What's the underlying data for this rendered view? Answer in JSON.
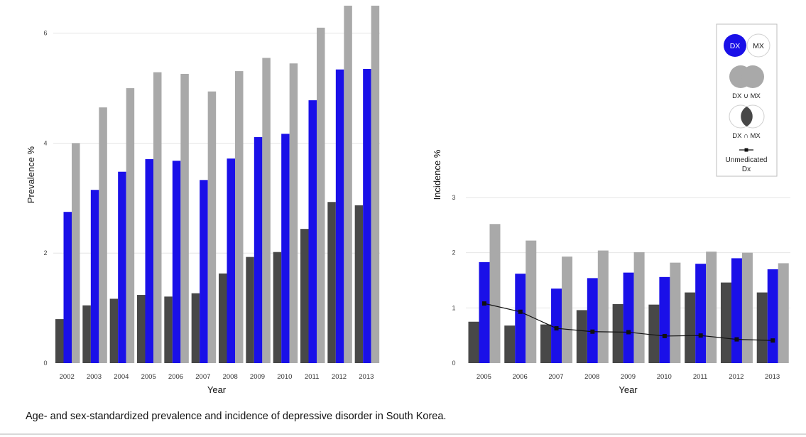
{
  "caption": "Age- and sex-standardized prevalence and incidence of depressive disorder in South Korea.",
  "colors": {
    "dx": "#1a10e8",
    "mx": "#a9a9a9",
    "union": "#a9a9a9",
    "intersection": "#484848",
    "line": "#111111",
    "grid": "#e6e6e6"
  },
  "legend": {
    "dx_label": "DX",
    "mx_label": "MX",
    "union_label": "DX ∪ MX",
    "intersection_label": "DX ∩ MX",
    "unmedicated_label_line1": "Unmedicated",
    "unmedicated_label_line2": "Dx"
  },
  "chart_data": [
    {
      "type": "bar",
      "title": "Prevalence",
      "xlabel": "Year",
      "ylabel": "Prevalence  %",
      "ylim": [
        0,
        6.5
      ],
      "yticks": [
        0,
        2,
        4,
        6
      ],
      "categories": [
        "2002",
        "2003",
        "2004",
        "2005",
        "2006",
        "2007",
        "2008",
        "2009",
        "2010",
        "2011",
        "2012",
        "2013"
      ],
      "series": [
        {
          "name": "DX ∩ MX",
          "values": [
            0.8,
            1.05,
            1.17,
            1.24,
            1.21,
            1.27,
            1.63,
            1.93,
            2.02,
            2.44,
            2.93,
            2.87
          ]
        },
        {
          "name": "DX",
          "values": [
            2.75,
            3.15,
            3.48,
            3.71,
            3.68,
            3.33,
            3.72,
            4.11,
            4.17,
            4.78,
            5.34,
            5.35
          ]
        },
        {
          "name": "DX ∪ MX",
          "values": [
            4.0,
            4.65,
            5.0,
            5.29,
            5.26,
            4.94,
            5.31,
            5.55,
            5.45,
            6.1,
            6.5,
            6.5
          ]
        }
      ]
    },
    {
      "type": "bar",
      "title": "Incidence",
      "xlabel": "Year",
      "ylabel": "Incidence  %",
      "ylim": [
        0,
        3
      ],
      "yticks": [
        0,
        1,
        2,
        3
      ],
      "categories": [
        "2005",
        "2006",
        "2007",
        "2008",
        "2009",
        "2010",
        "2011",
        "2012",
        "2013"
      ],
      "series": [
        {
          "name": "DX ∩ MX",
          "values": [
            0.75,
            0.68,
            0.7,
            0.96,
            1.07,
            1.06,
            1.28,
            1.46,
            1.28
          ]
        },
        {
          "name": "DX",
          "values": [
            1.83,
            1.62,
            1.35,
            1.54,
            1.64,
            1.56,
            1.8,
            1.9,
            1.7
          ]
        },
        {
          "name": "DX ∪ MX",
          "values": [
            2.52,
            2.22,
            1.93,
            2.04,
            2.01,
            1.82,
            2.02,
            2.0,
            1.81
          ]
        },
        {
          "name": "Unmedicated Dx",
          "type": "line",
          "values": [
            1.08,
            0.93,
            0.63,
            0.57,
            0.56,
            0.49,
            0.5,
            0.43,
            0.41
          ]
        }
      ]
    }
  ]
}
